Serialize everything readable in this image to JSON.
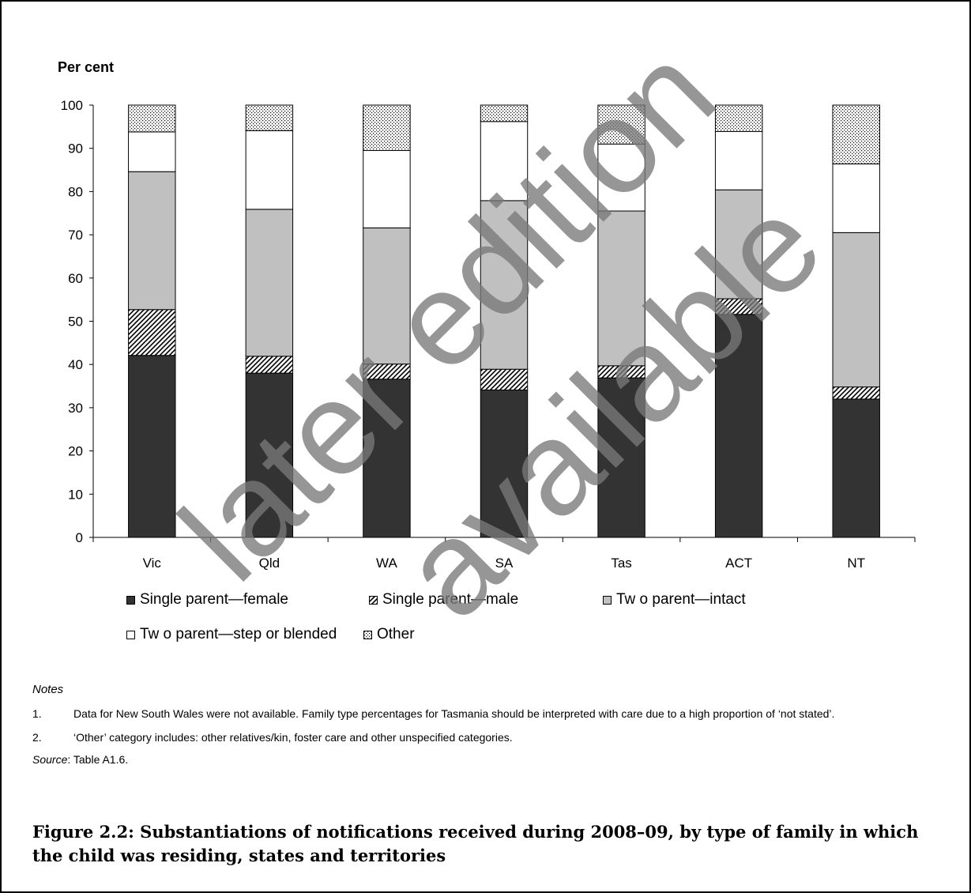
{
  "chart_data": {
    "type": "bar",
    "stacked": true,
    "ylabel": "Per cent",
    "ylim": [
      0,
      100
    ],
    "yticks": [
      0,
      10,
      20,
      30,
      40,
      50,
      60,
      70,
      80,
      90,
      100
    ],
    "categories": [
      "Vic",
      "Qld",
      "WA",
      "SA",
      "Tas",
      "ACT",
      "NT"
    ],
    "series": [
      {
        "name": "Single parent—female",
        "pattern": "solid-dark",
        "values": [
          42.1,
          38.0,
          36.6,
          34.1,
          36.9,
          51.6,
          32.0
        ]
      },
      {
        "name": "Single parent—male",
        "pattern": "hatch",
        "values": [
          10.6,
          3.9,
          3.5,
          4.8,
          2.8,
          3.6,
          2.8
        ]
      },
      {
        "name": "Tw o parent—intact",
        "pattern": "solid-light",
        "values": [
          31.9,
          34.0,
          31.5,
          39.0,
          35.8,
          25.2,
          35.7
        ]
      },
      {
        "name": "Tw o parent—step or blended",
        "pattern": "white",
        "values": [
          9.2,
          18.2,
          17.9,
          18.3,
          15.5,
          13.5,
          15.9
        ]
      },
      {
        "name": "Other",
        "pattern": "dots",
        "values": [
          6.2,
          5.9,
          10.5,
          3.8,
          9.0,
          6.1,
          13.6
        ]
      }
    ],
    "legend_position": "bottom",
    "grid": false
  },
  "colors": {
    "dark": "#333333",
    "light": "#c0c0c0",
    "white": "#ffffff",
    "outline": "#000000"
  },
  "notes": {
    "heading": "Notes",
    "items": [
      {
        "num": "1.",
        "text": "Data for New South Wales were not available. Family type percentages for Tasmania should be interpreted with care due to a high proportion of ‘not stated’."
      },
      {
        "num": "2.",
        "text": "‘Other’ category includes: other relatives/kin, foster care and other unspecified categories."
      }
    ],
    "source_label": "Source",
    "source_text": ": Table A1.6."
  },
  "caption": "Figure 2.2: Substantiations of notifications received during 2008–09, by type of family in which the child was residing, states and territories",
  "watermark": {
    "line1": "later edition",
    "line2": "available"
  }
}
